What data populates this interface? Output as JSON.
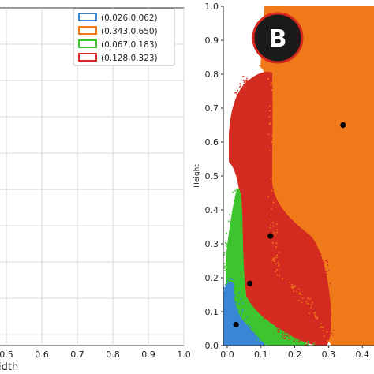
{
  "left_panel": {
    "x_ticks": [
      "0.5",
      "0.6",
      "0.7",
      "0.8",
      "0.9",
      "1.0"
    ],
    "xlabel_fragment": "idth",
    "legend": [
      {
        "label": "(0.026,0.062)",
        "color": "#3a86d6"
      },
      {
        "label": "(0.343,0.650)",
        "color": "#f07a1a"
      },
      {
        "label": "(0.067,0.183)",
        "color": "#3ec42f"
      },
      {
        "label": "(0.128,0.323)",
        "color": "#d42b20"
      }
    ]
  },
  "badge": {
    "letter": "B"
  },
  "chart_data": {
    "type": "scatter",
    "title": "",
    "xlabel": "",
    "ylabel": "Height",
    "xlim": [
      0,
      0.5
    ],
    "ylim": [
      0,
      1.0
    ],
    "x_ticks": [
      "0.0",
      "0.1",
      "0.2",
      "0.3",
      "0.4"
    ],
    "y_ticks": [
      "0.0",
      "0.1",
      "0.2",
      "0.3",
      "0.4",
      "0.5",
      "0.6",
      "0.7",
      "0.8",
      "0.9",
      "1.0"
    ],
    "grid": false,
    "clusters": [
      {
        "color": "#3a86d6",
        "centroid": [
          0.026,
          0.062
        ]
      },
      {
        "color": "#3ec42f",
        "centroid": [
          0.067,
          0.183
        ]
      },
      {
        "color": "#d42b20",
        "centroid": [
          0.128,
          0.323
        ]
      },
      {
        "color": "#f07a1a",
        "centroid": [
          0.343,
          0.65
        ]
      }
    ]
  }
}
